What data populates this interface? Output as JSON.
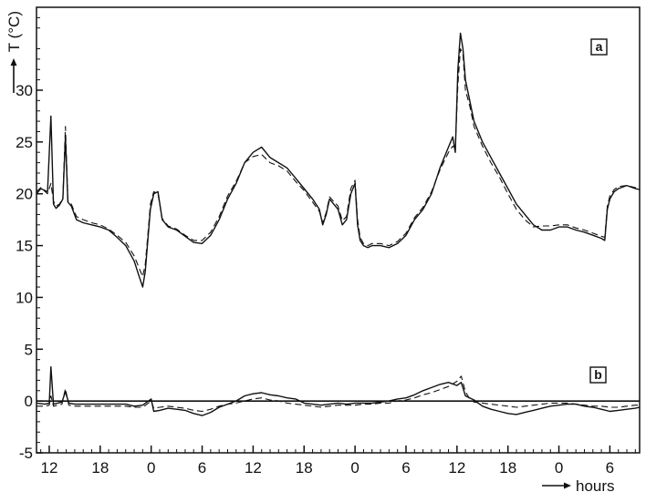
{
  "chart_data": {
    "type": "line",
    "title": "",
    "ylabel": "T (°C)",
    "xlabel": "hours",
    "x_unit": "hours",
    "xlim": [
      10.5,
      81.5
    ],
    "ylim": [
      -5,
      38
    ],
    "yticks": [
      -5,
      0,
      5,
      10,
      15,
      20,
      25,
      30
    ],
    "xticks": [
      {
        "x": 12,
        "label": "12"
      },
      {
        "x": 18,
        "label": "18"
      },
      {
        "x": 24,
        "label": "0"
      },
      {
        "x": 30,
        "label": "6"
      },
      {
        "x": 36,
        "label": "12"
      },
      {
        "x": 42,
        "label": "18"
      },
      {
        "x": 48,
        "label": "0"
      },
      {
        "x": 54,
        "label": "6"
      },
      {
        "x": 60,
        "label": "12"
      },
      {
        "x": 66,
        "label": "18"
      },
      {
        "x": 72,
        "label": "0"
      },
      {
        "x": 78,
        "label": "6"
      }
    ],
    "zero_line": 0,
    "panels": [
      {
        "label": "a",
        "content": "temperature"
      },
      {
        "label": "b",
        "content": "temperature difference"
      }
    ],
    "series": [
      {
        "style": "solid",
        "panel": "a",
        "x": [
          10.5,
          11.0,
          11.8,
          12.2,
          12.5,
          12.8,
          13.2,
          13.6,
          13.9,
          14.2,
          14.6,
          15.2,
          16.0,
          17.0,
          18.0,
          19.0,
          20.0,
          21.0,
          22.0,
          22.6,
          23.0,
          23.3,
          23.6,
          23.9,
          24.3,
          24.8,
          25.3,
          26.0,
          27.0,
          28.0,
          29.0,
          30.0,
          31.0,
          32.0,
          33.0,
          34.0,
          35.0,
          36.0,
          37.0,
          38.0,
          39.0,
          40.0,
          41.0,
          42.0,
          43.0,
          43.8,
          44.2,
          44.6,
          45.0,
          46.0,
          46.5,
          47.0,
          47.5,
          48.0,
          48.3,
          48.6,
          49.0,
          49.5,
          50.0,
          51.0,
          52.0,
          53.0,
          54.0,
          55.0,
          56.0,
          57.0,
          58.0,
          59.0,
          59.5,
          59.8,
          60.1,
          60.4,
          60.7,
          61.0,
          61.5,
          62.0,
          63.0,
          64.0,
          65.0,
          66.0,
          67.0,
          68.0,
          69.0,
          70.0,
          71.0,
          72.0,
          73.0,
          74.0,
          75.0,
          76.0,
          77.0,
          77.4,
          77.7,
          78.0,
          78.5,
          79.0,
          80.0,
          81.0,
          81.5
        ],
        "y": [
          20.0,
          20.5,
          20.2,
          27.5,
          19.0,
          18.6,
          18.9,
          19.5,
          25.5,
          19.2,
          18.8,
          17.5,
          17.2,
          17.0,
          16.8,
          16.5,
          15.8,
          15.0,
          13.5,
          12.0,
          11.0,
          12.5,
          15.5,
          18.5,
          20.0,
          20.2,
          17.5,
          16.8,
          16.5,
          15.9,
          15.3,
          15.2,
          16.0,
          17.5,
          19.5,
          21.0,
          23.0,
          24.0,
          24.5,
          23.5,
          23.0,
          22.5,
          21.5,
          20.5,
          19.5,
          18.5,
          17.0,
          18.0,
          19.5,
          18.5,
          17.0,
          17.5,
          20.0,
          21.0,
          17.0,
          15.5,
          15.0,
          14.8,
          15.0,
          15.0,
          14.8,
          15.2,
          16.0,
          17.5,
          18.5,
          20.0,
          22.5,
          24.5,
          25.5,
          24.0,
          32.0,
          35.5,
          34.0,
          31.0,
          29.0,
          27.0,
          25.0,
          23.5,
          22.0,
          20.5,
          19.0,
          18.0,
          17.0,
          16.5,
          16.5,
          16.8,
          16.8,
          16.5,
          16.3,
          16.0,
          15.7,
          15.5,
          18.5,
          19.5,
          20.2,
          20.5,
          20.8,
          20.5,
          20.4
        ]
      },
      {
        "style": "dashed",
        "panel": "a",
        "x": [
          10.5,
          11.0,
          11.8,
          12.2,
          12.5,
          12.8,
          13.2,
          13.6,
          13.9,
          14.2,
          14.6,
          15.2,
          16.0,
          17.0,
          18.0,
          19.0,
          20.0,
          21.0,
          22.0,
          22.6,
          23.0,
          23.3,
          23.6,
          23.9,
          24.3,
          24.8,
          25.3,
          26.0,
          27.0,
          28.0,
          29.0,
          30.0,
          31.0,
          32.0,
          33.0,
          34.0,
          35.0,
          36.0,
          37.0,
          38.0,
          39.0,
          40.0,
          41.0,
          42.0,
          43.0,
          43.8,
          44.2,
          44.6,
          45.0,
          46.0,
          46.5,
          47.0,
          47.5,
          48.0,
          48.3,
          48.6,
          49.0,
          49.5,
          50.0,
          51.0,
          52.0,
          53.0,
          54.0,
          55.0,
          56.0,
          57.0,
          58.0,
          59.0,
          59.5,
          59.8,
          60.1,
          60.4,
          60.7,
          61.0,
          61.5,
          62.0,
          63.0,
          64.0,
          65.0,
          66.0,
          67.0,
          68.0,
          69.0,
          70.0,
          71.0,
          72.0,
          73.0,
          74.0,
          75.0,
          76.0,
          77.0,
          77.4,
          77.7,
          78.0,
          78.5,
          79.0,
          80.0,
          81.0,
          81.5
        ],
        "y": [
          20.2,
          20.6,
          20.0,
          21.0,
          19.3,
          18.8,
          19.0,
          19.6,
          26.5,
          19.4,
          19.0,
          17.8,
          17.5,
          17.2,
          17.0,
          16.6,
          16.0,
          15.3,
          14.0,
          12.8,
          12.0,
          13.2,
          16.0,
          19.0,
          20.2,
          20.0,
          17.6,
          16.9,
          16.6,
          16.0,
          15.5,
          15.5,
          16.3,
          17.8,
          19.8,
          21.2,
          23.0,
          23.6,
          23.8,
          23.0,
          22.7,
          22.2,
          21.2,
          20.3,
          19.2,
          18.3,
          17.2,
          18.2,
          19.7,
          18.8,
          17.4,
          17.8,
          20.5,
          21.3,
          17.5,
          15.8,
          15.2,
          15.0,
          15.2,
          15.2,
          15.0,
          15.4,
          16.2,
          17.7,
          18.7,
          20.2,
          22.3,
          24.0,
          24.6,
          24.5,
          30.5,
          34.0,
          33.5,
          30.0,
          28.5,
          26.5,
          24.6,
          23.0,
          21.6,
          20.0,
          18.5,
          17.5,
          16.8,
          16.9,
          16.9,
          17.0,
          17.0,
          16.7,
          16.5,
          16.2,
          15.9,
          15.8,
          18.8,
          19.8,
          20.4,
          20.7,
          20.8,
          20.6,
          20.5
        ]
      },
      {
        "style": "solid",
        "panel": "b",
        "x": [
          10.5,
          11.5,
          12.0,
          12.2,
          12.5,
          13.0,
          13.5,
          13.9,
          14.3,
          15.0,
          17.0,
          19.0,
          21.0,
          22.0,
          23.0,
          23.5,
          24.0,
          24.3,
          25.0,
          26.0,
          27.0,
          28.0,
          29.0,
          30.0,
          31.0,
          32.0,
          33.0,
          34.0,
          35.0,
          36.0,
          37.0,
          38.0,
          39.0,
          40.0,
          41.0,
          42.0,
          43.0,
          44.0,
          45.0,
          46.0,
          47.0,
          48.0,
          49.0,
          50.0,
          51.0,
          52.0,
          53.0,
          54.0,
          55.0,
          56.0,
          57.0,
          58.0,
          59.0,
          60.0,
          60.5,
          61.0,
          61.5,
          62.0,
          63.0,
          64.0,
          65.0,
          66.0,
          67.0,
          68.0,
          69.0,
          70.0,
          71.0,
          72.0,
          73.0,
          74.0,
          75.0,
          76.0,
          77.0,
          78.0,
          79.0,
          80.0,
          81.0,
          81.5
        ],
        "y": [
          -0.2,
          -0.3,
          -0.2,
          3.3,
          -0.3,
          -0.2,
          -0.1,
          0.9,
          -0.2,
          -0.3,
          -0.3,
          -0.3,
          -0.3,
          -0.5,
          -0.4,
          -0.1,
          0.2,
          -1.0,
          -0.9,
          -0.7,
          -0.8,
          -0.9,
          -1.2,
          -1.4,
          -1.1,
          -0.6,
          -0.3,
          0.0,
          0.5,
          0.7,
          0.8,
          0.6,
          0.5,
          0.3,
          0.2,
          -0.2,
          -0.3,
          -0.4,
          -0.3,
          -0.2,
          -0.3,
          -0.2,
          -0.2,
          -0.2,
          -0.1,
          0.0,
          0.2,
          0.3,
          0.6,
          1.0,
          1.3,
          1.6,
          1.8,
          1.5,
          1.8,
          0.5,
          0.3,
          0.1,
          -0.5,
          -0.8,
          -1.0,
          -1.2,
          -1.3,
          -1.1,
          -0.9,
          -0.7,
          -0.5,
          -0.4,
          -0.3,
          -0.3,
          -0.5,
          -0.6,
          -0.8,
          -1.0,
          -0.9,
          -0.8,
          -0.7,
          -0.6
        ]
      },
      {
        "style": "dashed",
        "panel": "b",
        "x": [
          10.5,
          11.5,
          12.0,
          12.2,
          12.5,
          13.0,
          13.5,
          13.9,
          14.3,
          15.0,
          17.0,
          19.0,
          21.0,
          22.0,
          23.0,
          23.5,
          24.0,
          24.3,
          25.0,
          26.0,
          27.0,
          28.0,
          29.0,
          30.0,
          31.0,
          32.0,
          33.0,
          34.0,
          35.0,
          36.0,
          37.0,
          38.0,
          39.0,
          40.0,
          41.0,
          42.0,
          43.0,
          44.0,
          45.0,
          46.0,
          47.0,
          48.0,
          49.0,
          50.0,
          51.0,
          52.0,
          53.0,
          54.0,
          55.0,
          56.0,
          57.0,
          58.0,
          59.0,
          60.0,
          60.5,
          61.0,
          61.5,
          62.0,
          63.0,
          64.0,
          65.0,
          66.0,
          67.0,
          68.0,
          69.0,
          70.0,
          71.0,
          72.0,
          73.0,
          74.0,
          75.0,
          76.0,
          77.0,
          78.0,
          79.0,
          80.0,
          81.0,
          81.5
        ],
        "y": [
          -0.5,
          -0.5,
          -0.4,
          0.5,
          -0.5,
          -0.4,
          -0.3,
          1.2,
          -0.4,
          -0.5,
          -0.5,
          -0.5,
          -0.5,
          -0.6,
          -0.6,
          -0.3,
          0.0,
          -0.7,
          -0.6,
          -0.5,
          -0.6,
          -0.7,
          -0.9,
          -1.0,
          -0.8,
          -0.5,
          -0.3,
          -0.2,
          0.0,
          0.2,
          0.3,
          0.1,
          0.0,
          -0.2,
          -0.3,
          -0.4,
          -0.5,
          -0.6,
          -0.5,
          -0.4,
          -0.4,
          -0.4,
          -0.3,
          -0.3,
          -0.2,
          -0.2,
          0.0,
          0.1,
          0.3,
          0.6,
          0.8,
          1.1,
          1.4,
          1.9,
          2.4,
          0.9,
          0.2,
          -0.1,
          -0.2,
          -0.3,
          -0.4,
          -0.5,
          -0.6,
          -0.5,
          -0.4,
          -0.3,
          -0.2,
          -0.2,
          -0.2,
          -0.3,
          -0.4,
          -0.5,
          -0.5,
          -0.6,
          -0.6,
          -0.5,
          -0.4,
          -0.4
        ]
      }
    ]
  }
}
